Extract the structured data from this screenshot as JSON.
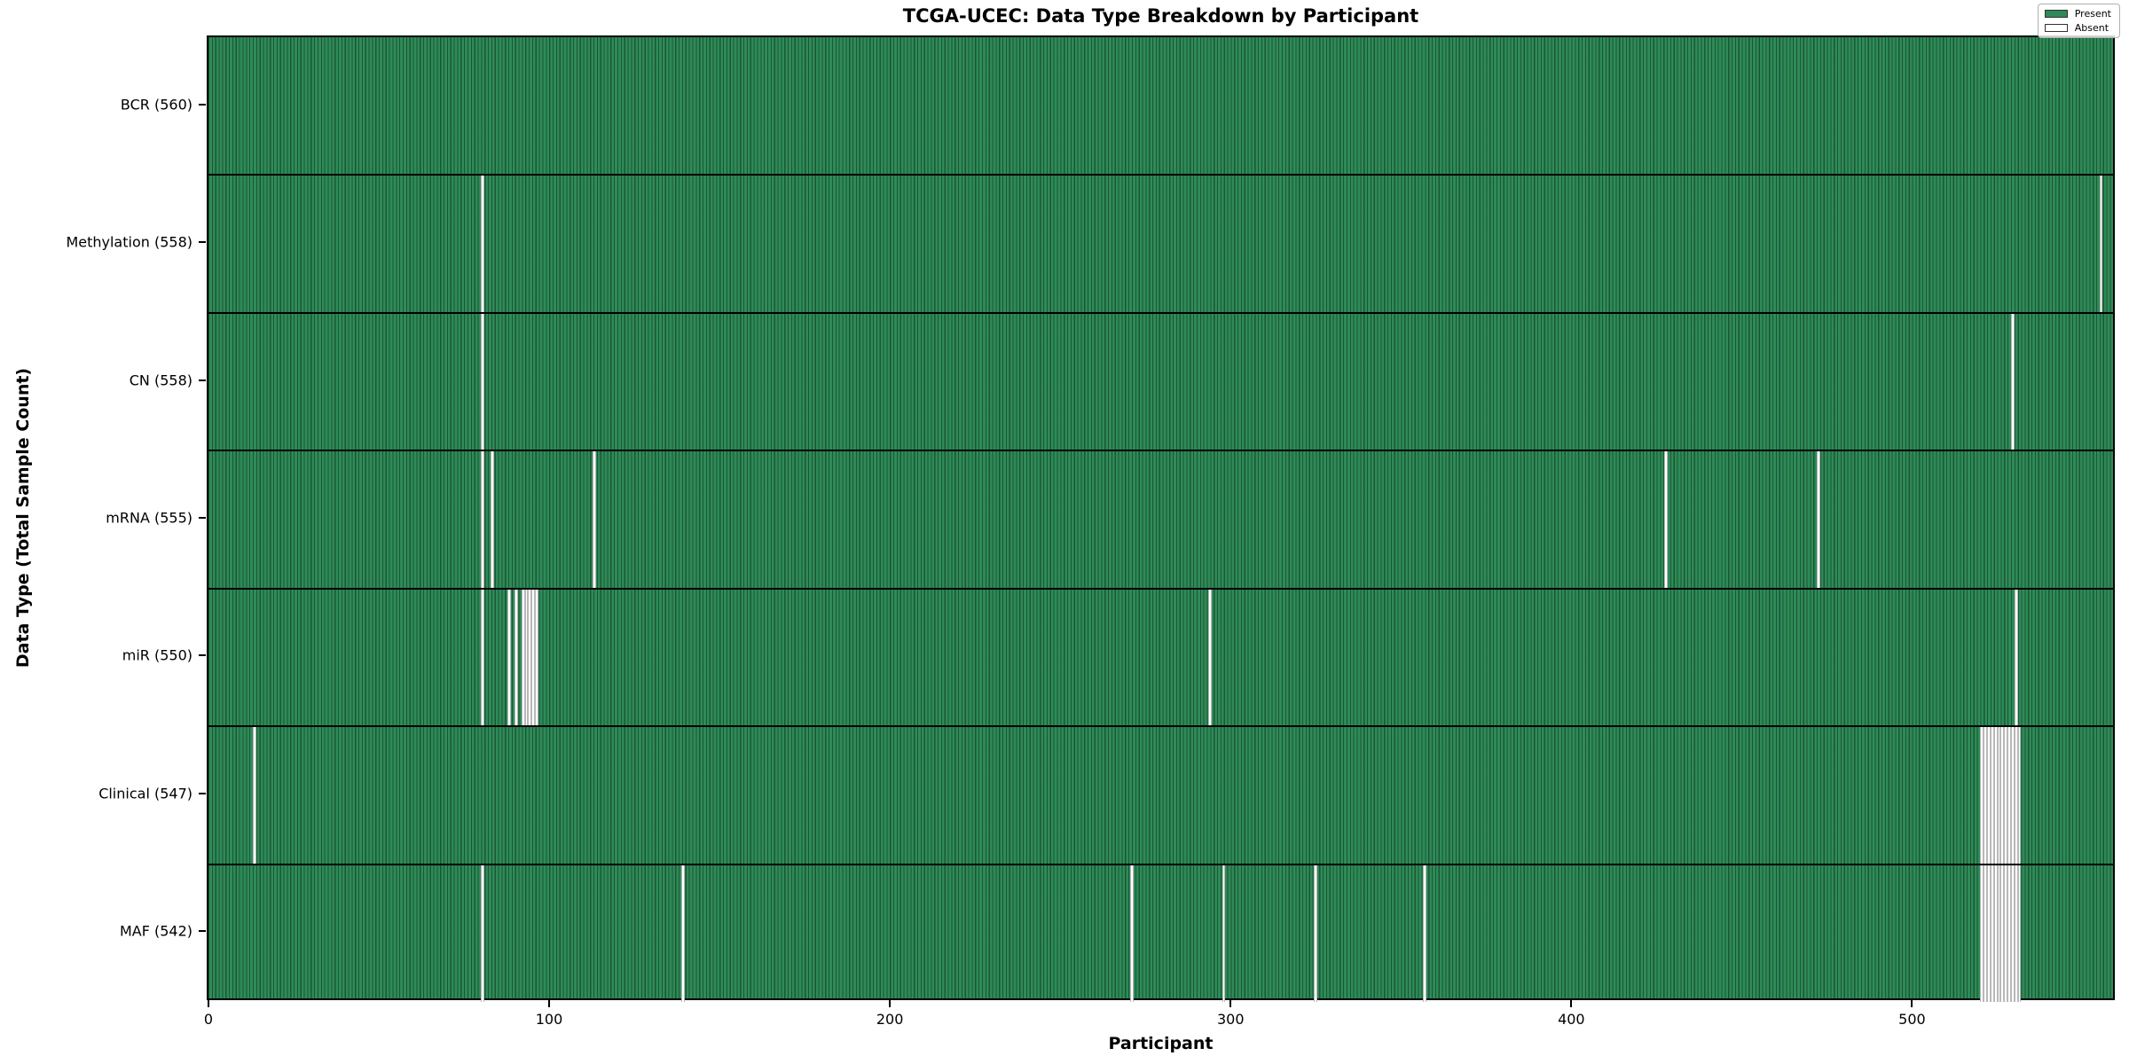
{
  "figure": {
    "title": "TCGA-UCEC: Data Type Breakdown by Participant",
    "xlabel": "Participant",
    "ylabel": "Data Type (Total Sample Count)"
  },
  "legend": {
    "entries": [
      {
        "label": "Present",
        "color": "#2e8b57"
      },
      {
        "label": "Absent",
        "color": "#ffffff"
      }
    ]
  },
  "colors": {
    "present": "#2e8b57",
    "absent": "#ffffff",
    "bar_edge": "rgba(12,42,28,0.55)",
    "row_separator": "#000000"
  },
  "chart_data": {
    "type": "heatmap",
    "title": "TCGA-UCEC: Data Type Breakdown by Participant",
    "xlabel": "Participant",
    "ylabel": "Data Type (Total Sample Count)",
    "legend_position": "upper right",
    "grid": false,
    "n_participants": 560,
    "xlim": [
      -0.5,
      559.5
    ],
    "x_ticks": [
      0,
      100,
      200,
      300,
      400,
      500
    ],
    "value_encoding": {
      "present": "green cell",
      "absent": "white cell"
    },
    "rows": [
      {
        "data_type": "BCR",
        "total_samples": 560,
        "label": "BCR (560)",
        "absent_participants": []
      },
      {
        "data_type": "Methylation",
        "total_samples": 558,
        "label": "Methylation (558)",
        "absent_participants": [
          80,
          556
        ]
      },
      {
        "data_type": "CN",
        "total_samples": 558,
        "label": "CN (558)",
        "absent_participants": [
          80,
          530
        ]
      },
      {
        "data_type": "mRNA",
        "total_samples": 555,
        "label": "mRNA (555)",
        "absent_participants": [
          80,
          83,
          113,
          428,
          473
        ]
      },
      {
        "data_type": "miR",
        "total_samples": 550,
        "label": "miR (550)",
        "absent_participants": [
          80,
          88,
          90,
          92,
          93,
          94,
          95,
          96,
          294,
          531
        ]
      },
      {
        "data_type": "Clinical",
        "total_samples": 547,
        "label": "Clinical (547)",
        "absent_participants": [
          13,
          521,
          522,
          523,
          524,
          525,
          526,
          527,
          528,
          529,
          530,
          531,
          532
        ]
      },
      {
        "data_type": "MAF",
        "total_samples": 542,
        "label": "MAF (542)",
        "absent_participants": [
          80,
          139,
          271,
          298,
          325,
          357,
          521,
          522,
          523,
          524,
          525,
          526,
          527,
          528,
          529,
          530,
          531,
          532
        ]
      }
    ]
  }
}
